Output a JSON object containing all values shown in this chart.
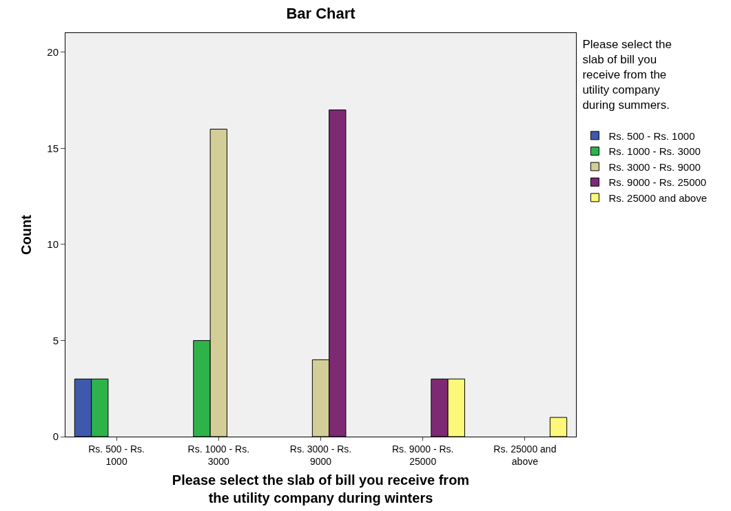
{
  "chart_data": {
    "type": "bar",
    "title": "Bar Chart",
    "xlabel": "Please select the slab of bill you receive from the utility company during winters",
    "ylabel": "Count",
    "legend_title": "Please select the slab of bill you receive from the utility company during summers.",
    "categories": [
      "Rs. 500 - Rs. 1000",
      "Rs. 1000 - Rs. 3000",
      "Rs. 3000 - Rs. 9000",
      "Rs. 9000 - Rs. 25000",
      "Rs. 25000 and above"
    ],
    "series": [
      {
        "name": "Rs. 500 - Rs. 1000",
        "color": "#3e58ac",
        "values": [
          3,
          null,
          null,
          null,
          null
        ]
      },
      {
        "name": "Rs. 1000 - Rs. 3000",
        "color": "#2db34a",
        "values": [
          3,
          5,
          null,
          null,
          null
        ]
      },
      {
        "name": "Rs. 3000 - Rs. 9000",
        "color": "#d3ce97",
        "values": [
          null,
          16,
          4,
          null,
          null
        ]
      },
      {
        "name": "Rs. 9000 - Rs. 25000",
        "color": "#7d2a73",
        "values": [
          null,
          null,
          17,
          3,
          null
        ]
      },
      {
        "name": "Rs. 25000 and above",
        "color": "#fbf87a",
        "values": [
          null,
          null,
          null,
          3,
          1
        ]
      }
    ],
    "ylim": [
      0,
      21
    ],
    "yticks": [
      0,
      5,
      10,
      15,
      20
    ],
    "grid": false,
    "legend": "top right"
  }
}
